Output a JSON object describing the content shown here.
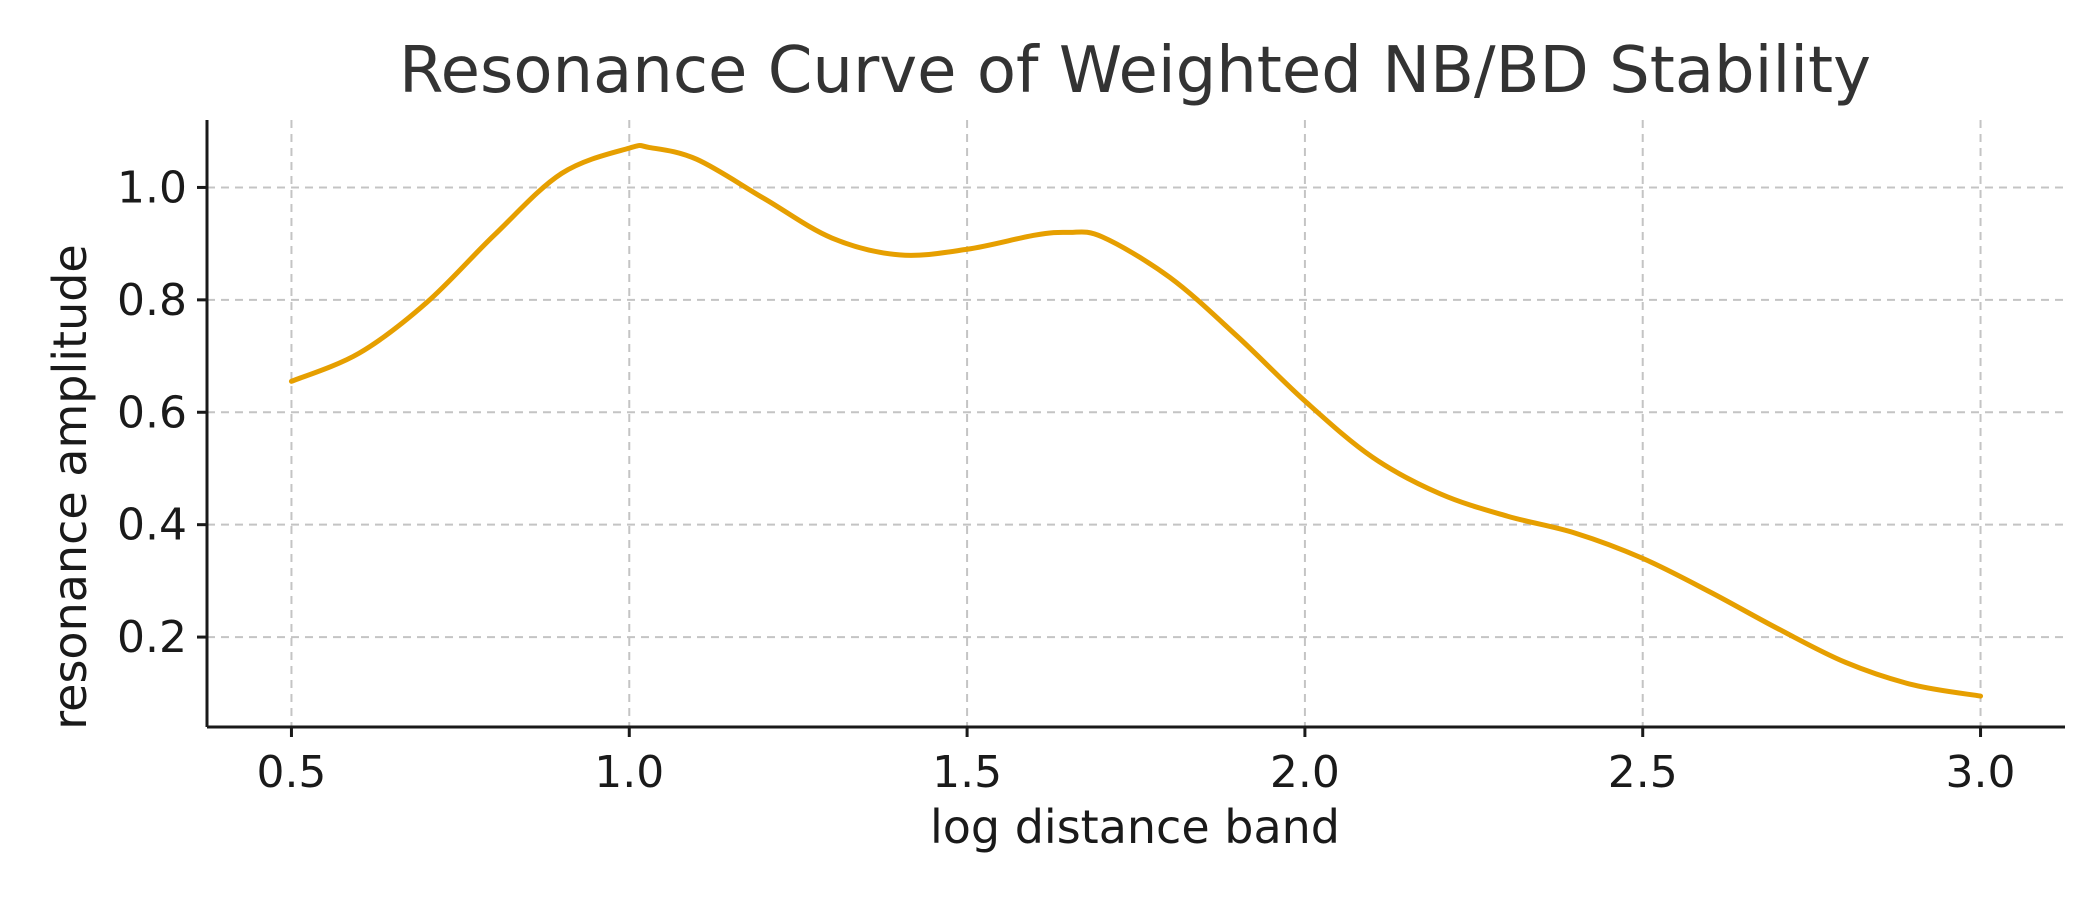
{
  "chart_data": {
    "type": "line",
    "title": "Resonance Curve of Weighted NB/BD Stability",
    "xlabel": "log distance band",
    "ylabel": "resonance amplitude",
    "xlim": [
      0.375,
      3.125
    ],
    "ylim": [
      0.04,
      1.12
    ],
    "xticks": [
      0.5,
      1.0,
      1.5,
      2.0,
      2.5,
      3.0
    ],
    "xtick_labels": [
      "0.5",
      "1.0",
      "1.5",
      "2.0",
      "2.5",
      "3.0"
    ],
    "yticks": [
      0.2,
      0.4,
      0.6,
      0.8,
      1.0
    ],
    "ytick_labels": [
      "0.2",
      "0.4",
      "0.6",
      "0.8",
      "1.0"
    ],
    "grid": true,
    "legend": "none",
    "series": [
      {
        "color": "#e69f00",
        "x": [
          0.5,
          0.6,
          0.7,
          0.8,
          0.9,
          1.0,
          1.03,
          1.1,
          1.2,
          1.3,
          1.4,
          1.5,
          1.6,
          1.65,
          1.7,
          1.8,
          1.9,
          2.0,
          2.1,
          2.2,
          2.3,
          2.4,
          2.5,
          2.6,
          2.7,
          2.8,
          2.9,
          3.0
        ],
        "y": [
          0.655,
          0.705,
          0.795,
          0.915,
          1.025,
          1.07,
          1.071,
          1.05,
          0.98,
          0.91,
          0.88,
          0.89,
          0.915,
          0.92,
          0.912,
          0.84,
          0.735,
          0.62,
          0.52,
          0.455,
          0.415,
          0.385,
          0.34,
          0.28,
          0.215,
          0.155,
          0.115,
          0.095
        ]
      }
    ]
  }
}
